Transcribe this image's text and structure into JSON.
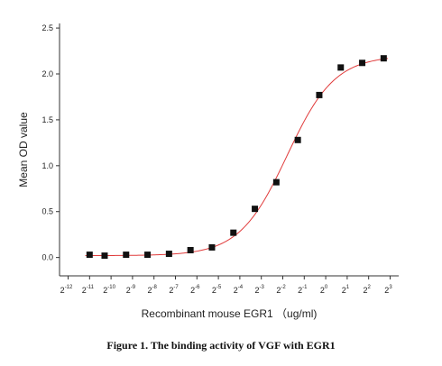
{
  "chart_data": {
    "type": "scatter",
    "xlabel": "Recombinant mouse EGR1 （ug/ml)",
    "ylabel": "Mean OD value",
    "x_scale": "log2",
    "xlim": [
      -12.4,
      3.4
    ],
    "ylim": [
      -0.2,
      2.55
    ],
    "x_ticks": [
      {
        "exp": -12,
        "base": "2",
        "sup": "-12"
      },
      {
        "exp": -11,
        "base": "2",
        "sup": "-11"
      },
      {
        "exp": -10,
        "base": "2",
        "sup": "-10"
      },
      {
        "exp": -9,
        "base": "2",
        "sup": "-9"
      },
      {
        "exp": -8,
        "base": "2",
        "sup": "-8"
      },
      {
        "exp": -7,
        "base": "2",
        "sup": "-7"
      },
      {
        "exp": -6,
        "base": "2",
        "sup": "-6"
      },
      {
        "exp": -5,
        "base": "2",
        "sup": "-5"
      },
      {
        "exp": -4,
        "base": "2",
        "sup": "-4"
      },
      {
        "exp": -3,
        "base": "2",
        "sup": "-3"
      },
      {
        "exp": -2,
        "base": "2",
        "sup": "-2"
      },
      {
        "exp": -1,
        "base": "2",
        "sup": "-1"
      },
      {
        "exp": 0,
        "base": "2",
        "sup": "0"
      },
      {
        "exp": 1,
        "base": "2",
        "sup": "1"
      },
      {
        "exp": 2,
        "base": "2",
        "sup": "2"
      },
      {
        "exp": 3,
        "base": "2",
        "sup": "3"
      }
    ],
    "y_ticks": [
      {
        "value": 0.0,
        "label": "0.0"
      },
      {
        "value": 0.5,
        "label": "0.5"
      },
      {
        "value": 1.0,
        "label": "1.0"
      },
      {
        "value": 1.5,
        "label": "1.5"
      },
      {
        "value": 2.0,
        "label": "2.0"
      },
      {
        "value": 2.5,
        "label": "2.5"
      }
    ],
    "points": [
      {
        "x_exp": -11.0,
        "y": 0.03
      },
      {
        "x_exp": -10.3,
        "y": 0.02
      },
      {
        "x_exp": -9.3,
        "y": 0.03
      },
      {
        "x_exp": -8.3,
        "y": 0.03
      },
      {
        "x_exp": -7.3,
        "y": 0.04
      },
      {
        "x_exp": -6.3,
        "y": 0.08
      },
      {
        "x_exp": -5.3,
        "y": 0.11
      },
      {
        "x_exp": -4.3,
        "y": 0.27
      },
      {
        "x_exp": -3.3,
        "y": 0.53
      },
      {
        "x_exp": -2.3,
        "y": 0.82
      },
      {
        "x_exp": -1.3,
        "y": 1.28
      },
      {
        "x_exp": -0.3,
        "y": 1.77
      },
      {
        "x_exp": 0.7,
        "y": 2.07
      },
      {
        "x_exp": 1.7,
        "y": 2.12
      },
      {
        "x_exp": 2.7,
        "y": 2.17
      }
    ],
    "fit_curve": {
      "type": "four-parameter-logistic",
      "bottom": 0.02,
      "top": 2.2,
      "midpoint_exp": -1.8,
      "slope_per_log2": 0.9
    },
    "colors": {
      "points": "#111111",
      "fit": "#e03a3a",
      "axis": "#333333"
    },
    "grid": false,
    "legend": "none"
  },
  "caption": "Figure 1. The binding activity of VGF with EGR1"
}
